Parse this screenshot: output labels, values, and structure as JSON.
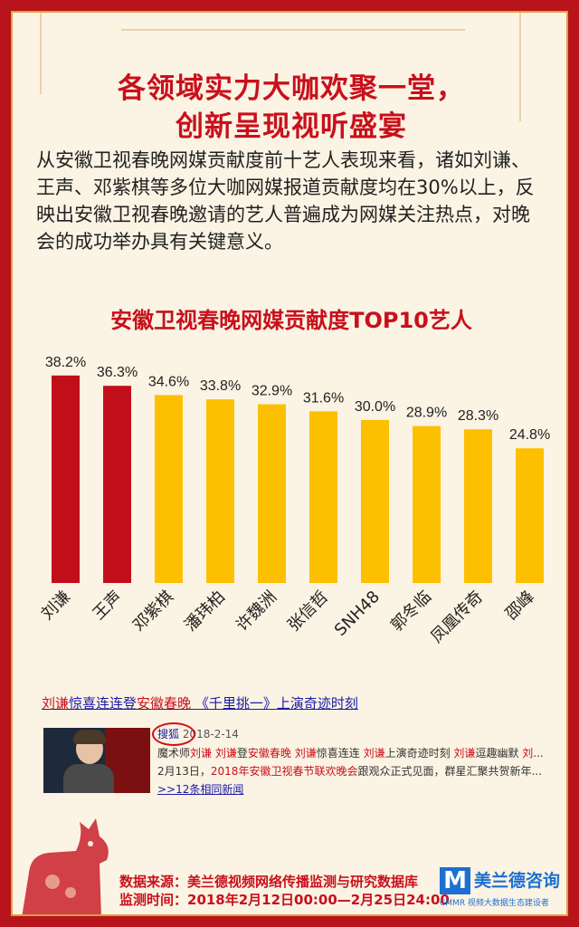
{
  "title": {
    "line1": "各领域实力大咖欢聚一堂，",
    "line2": "创新呈现视听盛宴"
  },
  "intro": "从安徽卫视春晚网媒贡献度前十艺人表现来看，诸如刘谦、王声、邓紫棋等多位大咖网媒报道贡献度均在30%以上，反映出安徽卫视春晚邀请的艺人普遍成为网媒关注热点，对晚会的成功举办具有关键意义。",
  "chart_data": {
    "type": "bar",
    "title": "安徽卫视春晚网媒贡献度TOP10艺人",
    "categories": [
      "刘谦",
      "王声",
      "邓紫棋",
      "潘玮柏",
      "许魏洲",
      "张信哲",
      "SNH48",
      "郭冬临",
      "凤凰传奇",
      "邵峰"
    ],
    "values": [
      38.2,
      36.3,
      34.6,
      33.8,
      32.9,
      31.6,
      30.0,
      28.9,
      28.3,
      24.8
    ],
    "labels": [
      "38.2%",
      "36.3%",
      "34.6%",
      "33.8%",
      "32.9%",
      "31.6%",
      "30.0%",
      "28.9%",
      "28.3%",
      "24.8%"
    ],
    "bar_colors": [
      "#c20e1a",
      "#c20e1a",
      "#fdc000",
      "#fdc000",
      "#fdc000",
      "#fdc000",
      "#fdc000",
      "#fdc000",
      "#fdc000",
      "#fdc000"
    ],
    "ylim": [
      0,
      40
    ],
    "grid": false
  },
  "news": {
    "headline_parts": [
      {
        "text": "刘谦",
        "hl": true
      },
      {
        "text": "惊喜连连登",
        "hl": false
      },
      {
        "text": "安徽春晚",
        "hl": true
      },
      {
        "text": " 《千里挑一》上演奇迹时刻",
        "hl": false
      }
    ],
    "source": "搜狐",
    "date": " 2018-2-14",
    "snippet_parts": [
      {
        "text": "魔术师",
        "hl": false
      },
      {
        "text": "刘谦",
        "hl": true
      },
      {
        "text": " ",
        "hl": false
      },
      {
        "text": "刘谦",
        "hl": true
      },
      {
        "text": "登",
        "hl": false
      },
      {
        "text": "安徽春晚",
        "hl": true
      },
      {
        "text": " ",
        "hl": false
      },
      {
        "text": "刘谦",
        "hl": true
      },
      {
        "text": "惊喜连连 ",
        "hl": false
      },
      {
        "text": "刘谦",
        "hl": true
      },
      {
        "text": "上演奇迹时刻 ",
        "hl": false
      },
      {
        "text": "刘谦",
        "hl": true
      },
      {
        "text": "逗趣幽默 ",
        "hl": false
      },
      {
        "text": "刘",
        "hl": true
      },
      {
        "text": "... 2月13日，",
        "hl": false
      },
      {
        "text": "2018年安徽卫视春节联欢晚会",
        "hl": true
      },
      {
        "text": "跟观众正式见面，群星汇聚共贺新年... ",
        "hl": false
      }
    ],
    "more_link": ">>12条相同新闻"
  },
  "footer": {
    "source": "数据来源：美兰德视频网络传播监测与研究数据库",
    "period": "监测时间：2018年2月12日00:00—2月25日24:00"
  },
  "logo": {
    "mark": "M",
    "name": "美兰德咨询",
    "sub": "CMMR 视频大数据生态建设者"
  },
  "colors": {
    "accent": "#c8101c",
    "gold": "#fdc000",
    "frame": "#b8141b",
    "panel": "#fbf3e3"
  }
}
